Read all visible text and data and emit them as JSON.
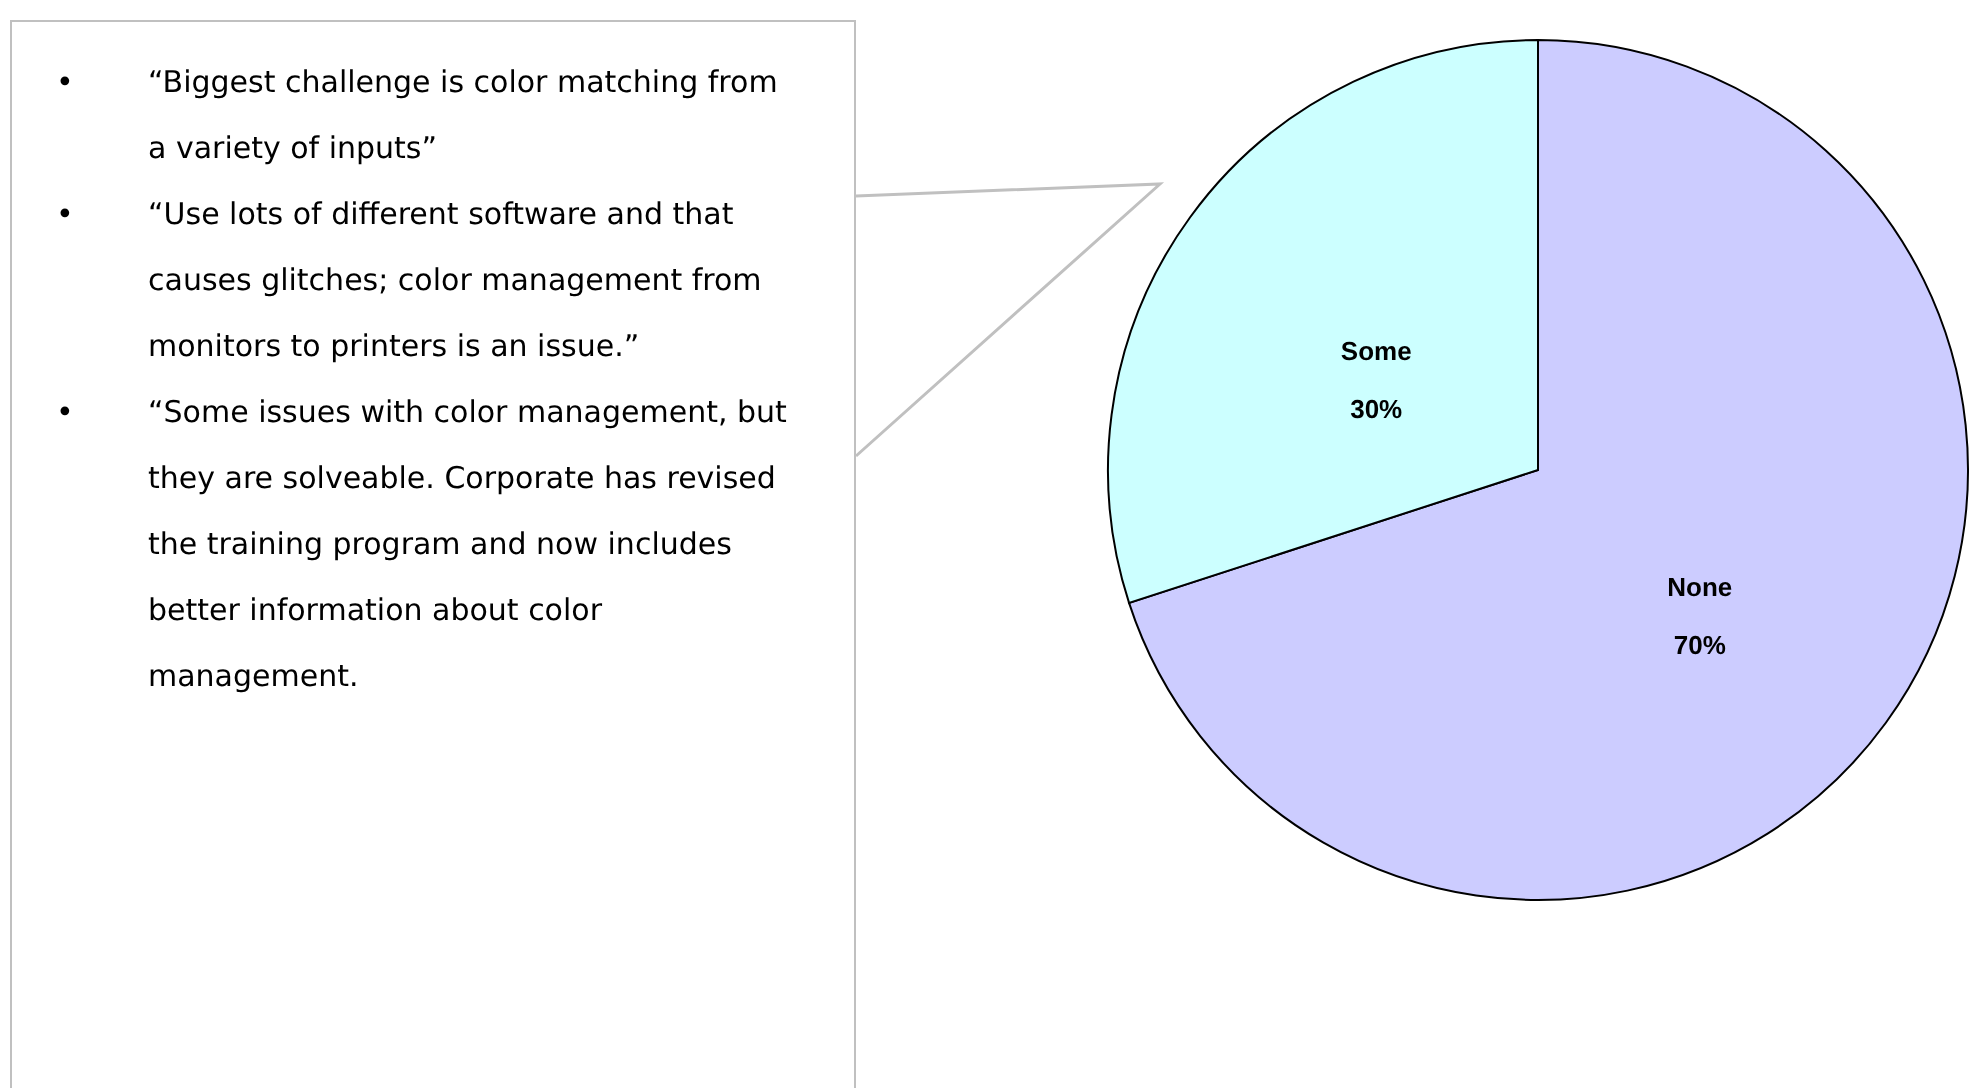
{
  "chart_data": {
    "type": "pie",
    "categories": [
      "None",
      "Some"
    ],
    "values": [
      70,
      30
    ],
    "value_labels": [
      "70%",
      "30%"
    ],
    "colors": [
      "#ccccff",
      "#ccffff"
    ],
    "annotations": [
      "• “Biggest challenge is color matching from a variety of inputs”",
      "• “Use lots of different software and that causes glitches; color management from monitors to printers is an issue.”",
      "• “Some issues with color management, but they are solveable.  Corporate has revised the training program and now includes better information about color management."
    ]
  }
}
